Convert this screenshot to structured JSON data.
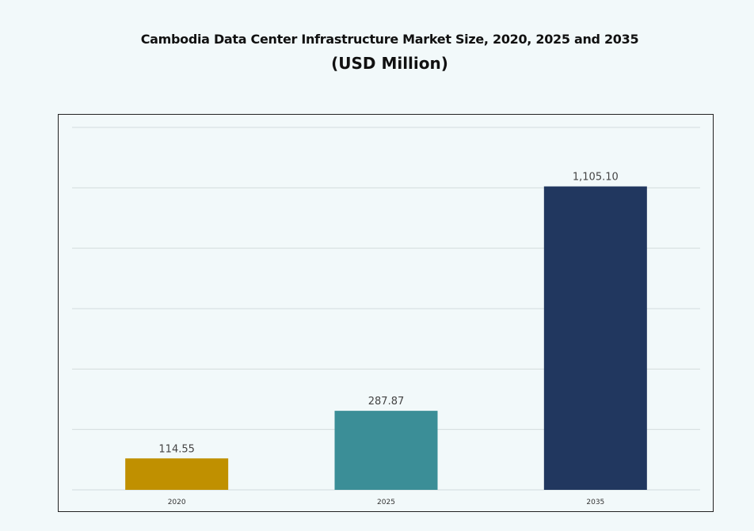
{
  "chart_data": {
    "type": "bar",
    "title": "Cambodia Data Center Infrastructure  Market Size, 2020, 2025 and 2035",
    "subtitle": "(USD Million)",
    "categories": [
      "2020",
      "2025",
      "2035"
    ],
    "values": [
      114.55,
      287.87,
      1105.1
    ],
    "data_labels": [
      "114.55",
      "287.87",
      "1,105.10"
    ],
    "colors": [
      "#c09000",
      "#3b8e97",
      "#21375f"
    ],
    "xlabel": "",
    "ylabel": "",
    "ylim": [
      0,
      1320
    ],
    "grid": true,
    "y_tick_labels_shown": false,
    "legend": "none"
  }
}
